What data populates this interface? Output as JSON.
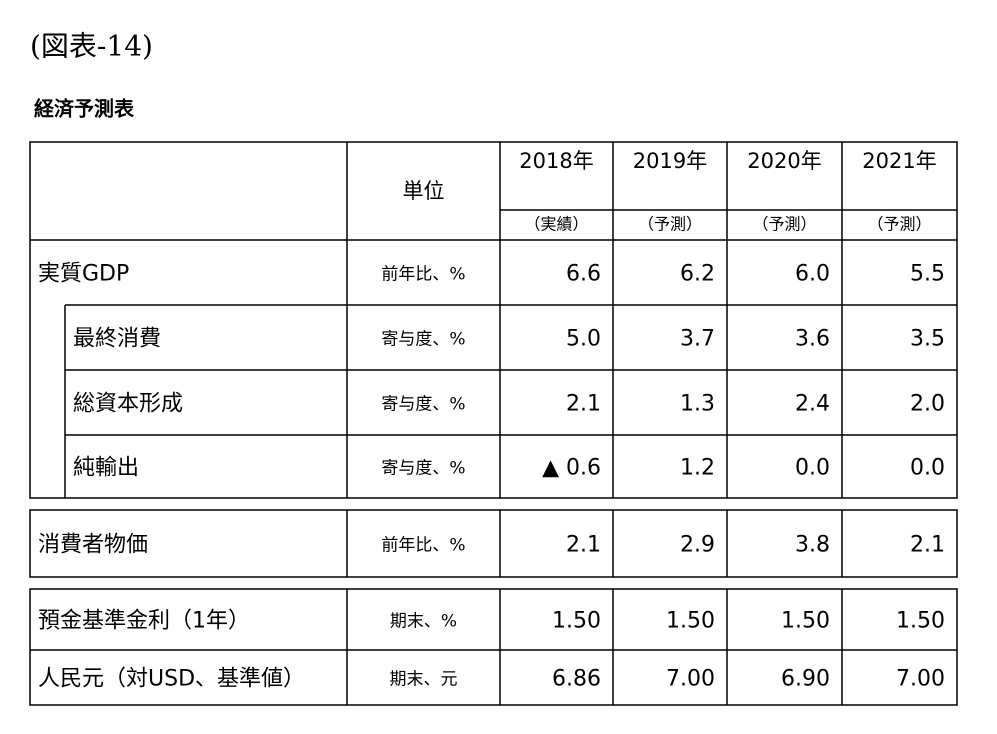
{
  "title": "(図表-14)",
  "subtitle": "経済予測表",
  "table": {
    "unit_header": "単位",
    "columns": [
      {
        "year": "2018年",
        "status": "（実績）"
      },
      {
        "year": "2019年",
        "status": "（予測）"
      },
      {
        "year": "2020年",
        "status": "（予測）"
      },
      {
        "year": "2021年",
        "status": "（予測）"
      }
    ],
    "sections": [
      {
        "rows": [
          {
            "label": "実質GDP",
            "unit": "前年比、%",
            "values": [
              "6.6",
              "6.2",
              "6.0",
              "5.5"
            ],
            "items": [
              {
                "label": "最終消費",
                "unit": "寄与度、%",
                "values": [
                  "5.0",
                  "3.7",
                  "3.6",
                  "3.5"
                ]
              },
              {
                "label": "総資本形成",
                "unit": "寄与度、%",
                "values": [
                  "2.1",
                  "1.3",
                  "2.4",
                  "2.0"
                ]
              },
              {
                "label": "純輸出",
                "unit": "寄与度、%",
                "values": [
                  "▲ 0.6",
                  "1.2",
                  "0.0",
                  "0.0"
                ]
              }
            ]
          }
        ]
      },
      {
        "rows": [
          {
            "label": "消費者物価",
            "unit": "前年比、%",
            "values": [
              "2.1",
              "2.9",
              "3.8",
              "2.1"
            ]
          }
        ]
      },
      {
        "rows": [
          {
            "label": "預金基準金利（1年）",
            "unit": "期末、%",
            "values": [
              "1.50",
              "1.50",
              "1.50",
              "1.50"
            ]
          },
          {
            "label": "人民元（対USD、基準値）",
            "unit": "期末、元",
            "values": [
              "6.86",
              "7.00",
              "6.90",
              "7.00"
            ]
          }
        ]
      }
    ]
  }
}
